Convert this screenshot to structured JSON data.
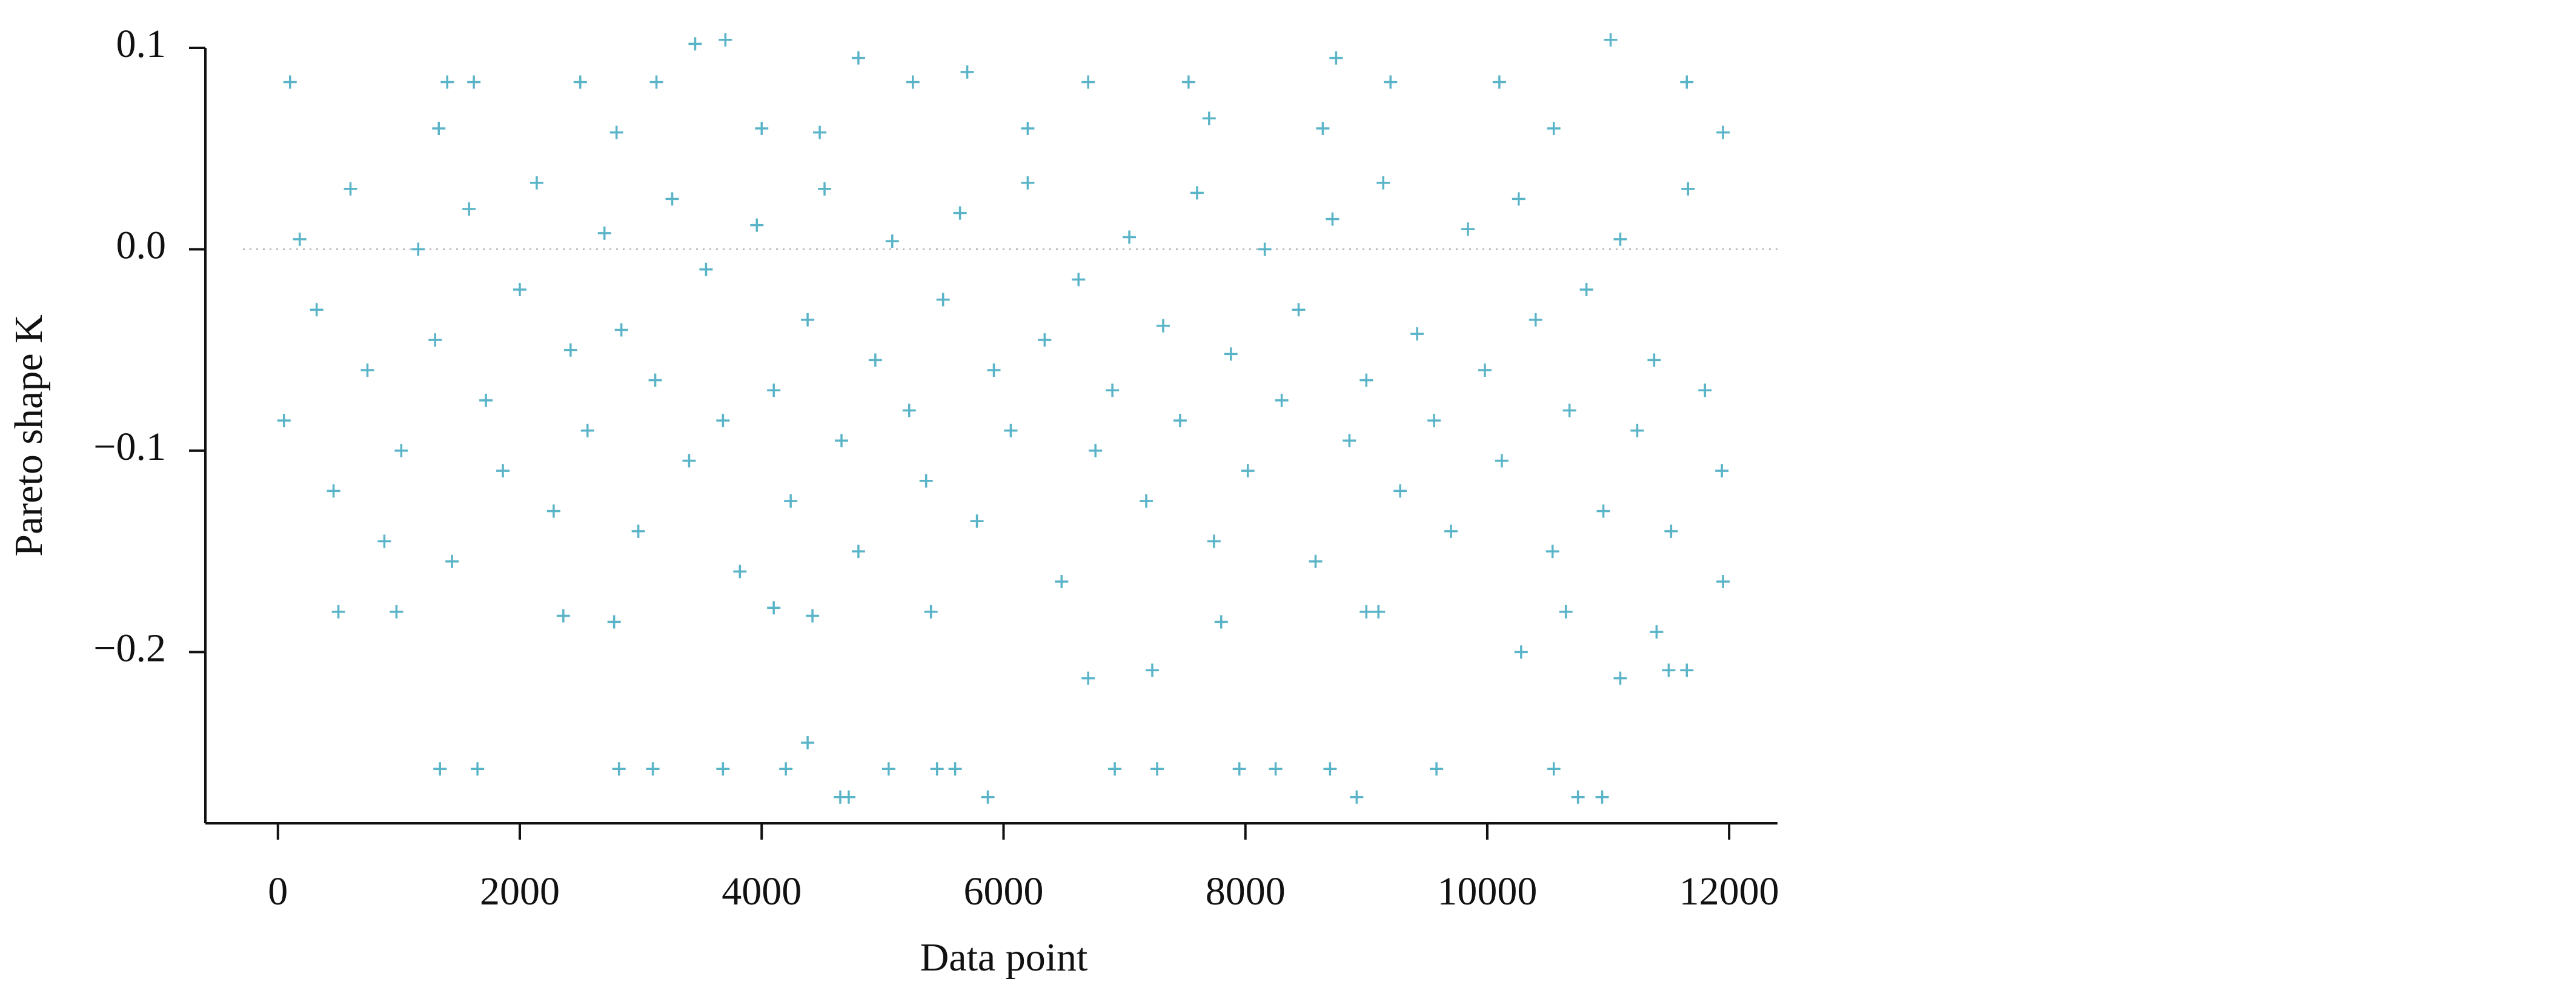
{
  "chart_data": {
    "type": "scatter",
    "xlabel": "Data point",
    "ylabel": "Pareto shape K",
    "color": "#5ab4c8",
    "xlim": [
      -600,
      12400
    ],
    "xticks": [
      0,
      2000,
      4000,
      6000,
      8000,
      10000,
      12000
    ],
    "ylim": [
      -0.285,
      0.1
    ],
    "yticks": [
      0.1,
      {
        "value": 0,
        "label": "0.0"
      },
      {
        "value": -0.1,
        "label": "−0.1"
      },
      {
        "value": -0.2,
        "label": "−0.2"
      }
    ],
    "hline": 0,
    "x": [
      50,
      180,
      320,
      460,
      600,
      740,
      880,
      1020,
      1160,
      1300,
      1440,
      1580,
      1720,
      1860,
      2000,
      2140,
      2280,
      2420,
      2560,
      2700,
      2840,
      2980,
      3120,
      3260,
      3400,
      3540,
      3680,
      3820,
      3960,
      4100,
      4240,
      4380,
      4520,
      4660,
      4800,
      4940,
      5080,
      5220,
      5360,
      5500,
      5640,
      5780,
      5920,
      6060,
      6200,
      6340,
      6480,
      6620,
      6760,
      6900,
      7040,
      7180,
      7320,
      7460,
      7600,
      7740,
      7880,
      8020,
      8160,
      8300,
      8440,
      8580,
      8720,
      8860,
      9000,
      9140,
      9280,
      9420,
      9560,
      9700,
      9840,
      9980,
      10120,
      10260,
      10400,
      10540,
      10680,
      10820,
      10960,
      11100,
      11240,
      11380,
      11520,
      11660,
      11800,
      11940,
      1340,
      1650,
      2820,
      3100,
      3680,
      4200,
      4380,
      4650,
      4720,
      5050,
      5450,
      5600,
      5870,
      6920,
      7270,
      7950,
      8250,
      8700,
      8920,
      9580,
      10550,
      10750,
      10950,
      6700,
      7230,
      11100,
      11500,
      11650,
      3450,
      3700,
      11020,
      4800,
      8750,
      100,
      1400,
      2500,
      6700,
      9200,
      11650,
      5700,
      500,
      980,
      2360,
      2780,
      4100,
      4420,
      5400,
      7800,
      9000,
      9100,
      10280,
      10650,
      11400,
      11950,
      1330,
      2800,
      4000,
      6200,
      7700,
      10550,
      11950,
      1620,
      3130,
      4480,
      5250,
      7530,
      8640,
      10100
    ],
    "values": [
      -0.085,
      0.005,
      -0.03,
      -0.12,
      0.03,
      -0.06,
      -0.145,
      -0.1,
      0.0,
      -0.045,
      -0.155,
      0.02,
      -0.075,
      -0.11,
      -0.02,
      0.033,
      -0.13,
      -0.05,
      -0.09,
      0.008,
      -0.04,
      -0.14,
      -0.065,
      0.025,
      -0.105,
      -0.01,
      -0.085,
      -0.16,
      0.012,
      -0.07,
      -0.125,
      -0.035,
      0.03,
      -0.095,
      -0.15,
      -0.055,
      0.004,
      -0.08,
      -0.115,
      -0.025,
      0.018,
      -0.135,
      -0.06,
      -0.09,
      0.033,
      -0.045,
      -0.165,
      -0.015,
      -0.1,
      -0.07,
      0.006,
      -0.125,
      -0.038,
      -0.085,
      0.028,
      -0.145,
      -0.052,
      -0.11,
      0.0,
      -0.075,
      -0.03,
      -0.155,
      0.015,
      -0.095,
      -0.065,
      0.033,
      -0.12,
      -0.042,
      -0.085,
      -0.14,
      0.01,
      -0.06,
      -0.105,
      0.025,
      -0.035,
      -0.15,
      -0.08,
      -0.02,
      -0.13,
      0.005,
      -0.09,
      -0.055,
      -0.14,
      0.03,
      -0.07,
      -0.11,
      -0.258,
      -0.258,
      -0.258,
      -0.258,
      -0.258,
      -0.258,
      -0.245,
      -0.272,
      -0.272,
      -0.258,
      -0.258,
      -0.258,
      -0.272,
      -0.258,
      -0.258,
      -0.258,
      -0.258,
      -0.258,
      -0.272,
      -0.258,
      -0.258,
      -0.272,
      -0.272,
      -0.213,
      -0.209,
      -0.213,
      -0.209,
      -0.209,
      0.102,
      0.104,
      0.104,
      0.095,
      0.095,
      0.083,
      0.083,
      0.083,
      0.083,
      0.083,
      0.083,
      0.088,
      -0.18,
      -0.18,
      -0.182,
      -0.185,
      -0.178,
      -0.182,
      -0.18,
      -0.185,
      -0.18,
      -0.18,
      -0.2,
      -0.18,
      -0.19,
      -0.165,
      0.06,
      0.058,
      0.06,
      0.06,
      0.065,
      0.06,
      0.058,
      0.083,
      0.083,
      0.058,
      0.083,
      0.083,
      0.06,
      0.083
    ]
  }
}
